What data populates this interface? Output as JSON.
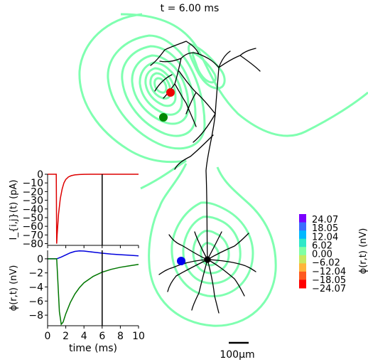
{
  "title": "t = 6.00 ms",
  "scale_bar": {
    "label": "100μm",
    "length_um": 100
  },
  "chart_data": [
    {
      "type": "line",
      "name": "synaptic-current",
      "xlabel": "",
      "ylabel": "I_{i,j}(t) (pA)",
      "xlim": [
        0,
        10
      ],
      "ylim": [
        -82,
        0
      ],
      "yticks": [
        0,
        -10,
        -20,
        -30,
        -40,
        -50,
        -60,
        -70,
        -80
      ],
      "ytick_labels": [
        "0",
        "−10",
        "−20",
        "−30",
        "−40",
        "−50",
        "−60",
        "−70",
        "−80"
      ],
      "marker_time": 6.0,
      "series": [
        {
          "color": "#dd0000",
          "x": [
            0,
            0.95,
            1.0,
            1.05,
            1.2,
            1.4,
            1.6,
            1.8,
            2.0,
            2.3,
            2.6,
            3.0,
            3.5,
            4.0,
            5.0,
            6.0,
            8.0,
            10.0
          ],
          "y": [
            0,
            0,
            -80,
            -70,
            -46,
            -28,
            -17,
            -10,
            -6,
            -3,
            -1.6,
            -0.7,
            -0.3,
            -0.1,
            0,
            0,
            0,
            0
          ]
        }
      ]
    },
    {
      "type": "line",
      "name": "extracellular-potential",
      "xlabel": "time (ms)",
      "ylabel": "ϕ(r,t) (nV)",
      "xlim": [
        0,
        10
      ],
      "ylim": [
        -9.5,
        1.2
      ],
      "xticks": [
        0,
        2,
        4,
        6,
        8,
        10
      ],
      "xtick_labels": [
        "0",
        "2",
        "4",
        "6",
        "8",
        "10"
      ],
      "yticks": [
        0,
        -2,
        -4,
        -6,
        -8
      ],
      "ytick_labels": [
        "0",
        "−2",
        "−4",
        "−6",
        "−8"
      ],
      "marker_time": 6.0,
      "series": [
        {
          "color": "#0000dd",
          "x": [
            0,
            1.0,
            1.5,
            2.0,
            2.5,
            3.0,
            3.5,
            4.0,
            4.5,
            5.0,
            6.0,
            7.0,
            8.0,
            9.0,
            10.0
          ],
          "y": [
            0,
            0,
            0.25,
            0.55,
            0.85,
            1.05,
            1.12,
            1.1,
            1.02,
            0.95,
            0.8,
            0.68,
            0.58,
            0.5,
            0.42
          ]
        },
        {
          "color": "#007700",
          "x": [
            0,
            1.0,
            1.1,
            1.3,
            1.5,
            1.7,
            2.0,
            2.5,
            3.0,
            3.5,
            4.0,
            5.0,
            6.0,
            7.0,
            8.0,
            9.0,
            10.0
          ],
          "y": [
            0,
            0,
            -2.5,
            -7.5,
            -9.3,
            -9.0,
            -7.8,
            -6.2,
            -5.0,
            -4.1,
            -3.4,
            -2.5,
            -1.9,
            -1.5,
            -1.2,
            -1.0,
            -0.8
          ]
        }
      ]
    },
    {
      "type": "heatmap",
      "name": "colorbar",
      "label": "ϕ(r,t) (nV)",
      "tick_labels": [
        "24.07",
        "18.05",
        "12.04",
        "6.02",
        "0.00",
        "−6.02",
        "−12.04",
        "−18.05",
        "−24.07"
      ],
      "colors": [
        "#7a00ff",
        "#3c6cff",
        "#00b8ff",
        "#2ee8c8",
        "#7fffa4",
        "#c8e860",
        "#ffb43a",
        "#ff5a1e",
        "#ff0000"
      ]
    }
  ],
  "dots": [
    {
      "name": "red-electrode-dot",
      "color": "#ee0000"
    },
    {
      "name": "green-electrode-dot",
      "color": "#008800"
    },
    {
      "name": "blue-electrode-dot",
      "color": "#0000ee"
    }
  ],
  "contour_color": "#7fffb0"
}
